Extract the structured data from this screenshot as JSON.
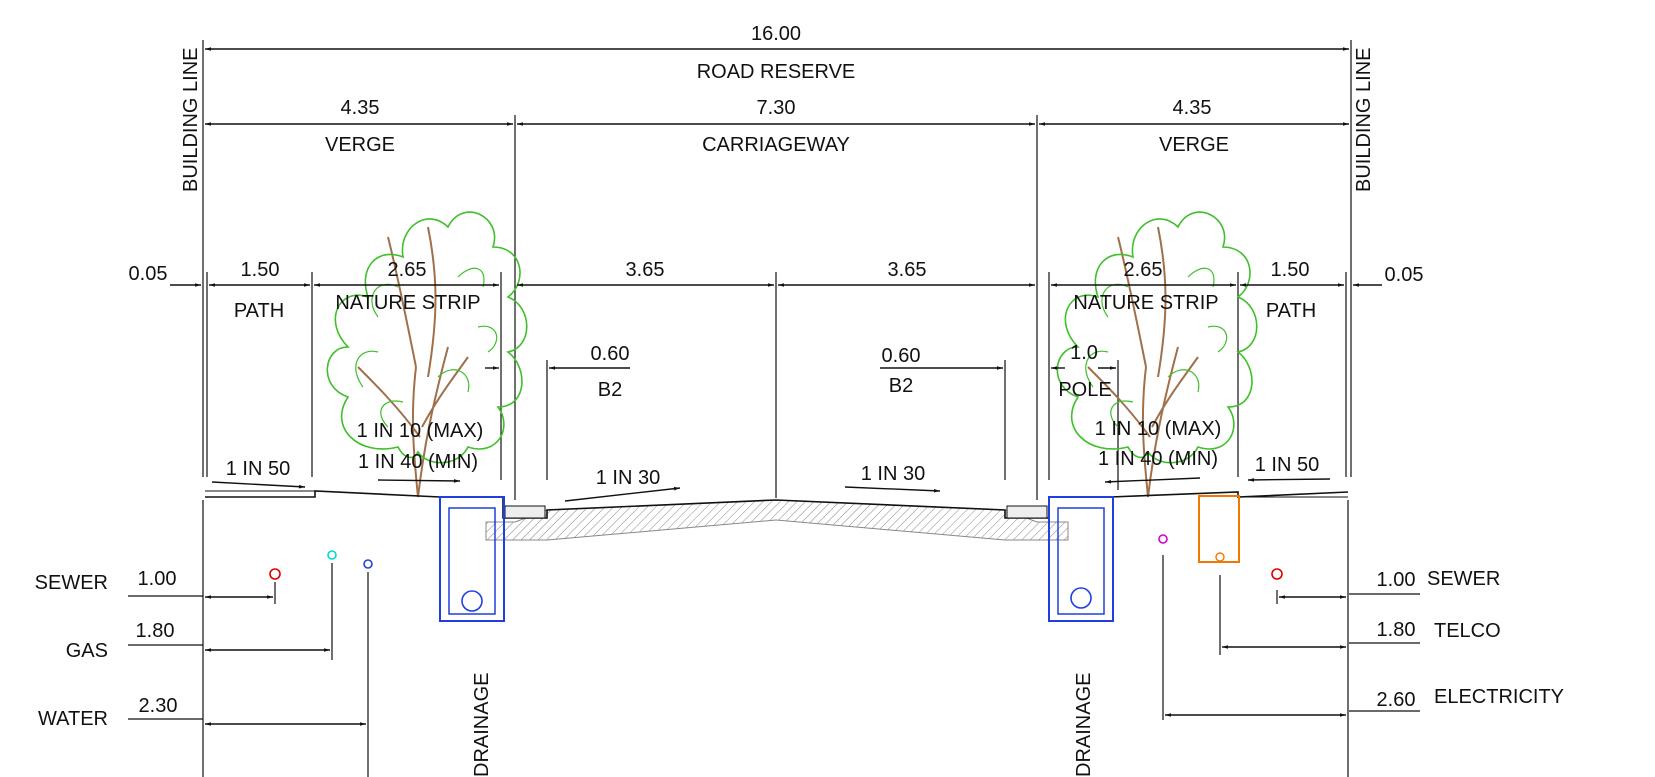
{
  "top": {
    "total_width": "16.00",
    "road_reserve": "ROAD RESERVE",
    "verge_left_width": "4.35",
    "carriageway_width": "7.30",
    "verge_right_width": "4.35",
    "verge_left": "VERGE",
    "carriageway": "CARRIAGEWAY",
    "verge_right": "VERGE",
    "building_line_left": "BUILDING LINE",
    "building_line_right": "BUILDING LINE"
  },
  "mid": {
    "offset_left": "0.05",
    "path_left_width": "1.50",
    "nature_left_width": "2.65",
    "lane_left_width": "3.65",
    "lane_right_width": "3.65",
    "nature_right_width": "2.65",
    "path_right_width": "1.50",
    "offset_right": "0.05",
    "path_left": "PATH",
    "nature_left": "NATURE STRIP",
    "nature_right": "NATURE STRIP",
    "path_right": "PATH"
  },
  "kerb": {
    "b2_left_width": "0.60",
    "b2_left": "B2",
    "b2_right_width": "0.60",
    "b2_right": "B2",
    "pole_offset": "1.0",
    "pole": "POLE"
  },
  "slopes": {
    "verge_max_left": "1 IN  10 (MAX)",
    "verge_min_left": "1 IN 40 (MIN)",
    "verge_max_right": "1 IN  10 (MAX)",
    "verge_min_right": "1 IN 40 (MIN)",
    "path_left": "1 IN  50",
    "path_right": "1 IN  50",
    "road_left": "1 IN 30",
    "road_right": "1 IN 30"
  },
  "services_left": [
    {
      "name": "SEWER",
      "offset": "1.00"
    },
    {
      "name": "GAS",
      "offset": "1.80"
    },
    {
      "name": "WATER",
      "offset": "2.30"
    }
  ],
  "services_right": [
    {
      "name": "SEWER",
      "offset": "1.00"
    },
    {
      "name": "TELCO",
      "offset": "1.80"
    },
    {
      "name": "ELECTRICITY",
      "offset": "2.60"
    }
  ],
  "drainage_left": "DRAINAGE",
  "drainage_right": "DRAINAGE",
  "colors": {
    "line": "#111111",
    "drainage": "#1f3fe0",
    "tree_canopy": "#3fbf2a",
    "tree_trunk": "#a0704a",
    "sewer": "#e00000",
    "gas": "#00d8d8",
    "water": "#1f3fe0",
    "electricity": "#d000d0",
    "telco": "#f07800",
    "pavement_hatch": "#888888"
  }
}
